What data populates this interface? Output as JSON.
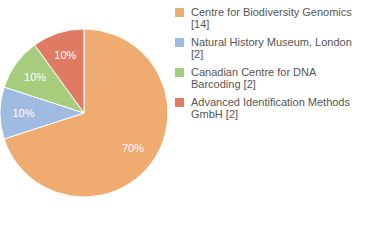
{
  "chart_data": {
    "type": "pie",
    "categories": [
      "Centre for Biodiversity Genomics [14]",
      "Natural History Museum, London [2]",
      "Canadian Centre for DNA Barcoding [2]",
      "Advanced Identification Methods GmbH [2]"
    ],
    "values": [
      70,
      10,
      10,
      10
    ],
    "value_labels": [
      "70%",
      "10%",
      "10%",
      "10%"
    ],
    "colors": [
      "#efab70",
      "#9fbbe2",
      "#a6cd7c",
      "#e07b63"
    ],
    "data_labels": true,
    "legend": "top-right"
  }
}
